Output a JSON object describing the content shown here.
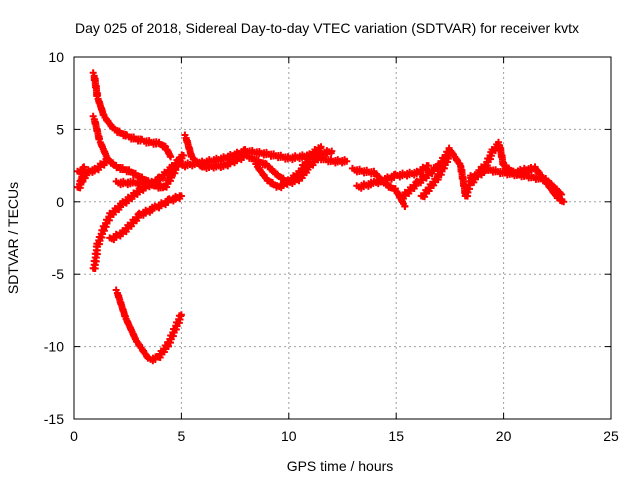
{
  "chart_data": {
    "type": "scatter",
    "title": "Day 025 of 2018, Sidereal Day-to-day VTEC variation (SDTVAR) for receiver kvtx",
    "xlabel": "GPS time / hours",
    "ylabel": "SDTVAR / TECUs",
    "xlim": [
      0,
      25
    ],
    "ylim": [
      -15,
      10
    ],
    "xticks": [
      0,
      5,
      10,
      15,
      20,
      25
    ],
    "yticks": [
      -15,
      -10,
      -5,
      0,
      5,
      10
    ],
    "grid": true,
    "marker": "+",
    "color": "#ff0000",
    "traces": [
      [
        [
          0.93,
          8.8
        ],
        [
          1.1,
          7.2
        ],
        [
          1.4,
          5.9
        ],
        [
          1.86,
          5.0
        ],
        [
          2.5,
          4.5
        ],
        [
          3.2,
          4.2
        ],
        [
          4.0,
          4.0
        ],
        [
          4.3,
          3.7
        ],
        [
          4.5,
          3.1
        ]
      ],
      [
        [
          0.93,
          5.8
        ],
        [
          1.2,
          4.2
        ],
        [
          1.58,
          2.9
        ],
        [
          2.0,
          2.4
        ],
        [
          2.6,
          2.1
        ],
        [
          3.2,
          1.6
        ],
        [
          3.77,
          1.1
        ],
        [
          4.2,
          0.95
        ],
        [
          4.6,
          1.9
        ],
        [
          4.93,
          2.9
        ]
      ],
      [
        [
          2.0,
          1.3
        ],
        [
          2.8,
          1.3
        ],
        [
          3.5,
          1.3
        ],
        [
          4.0,
          1.2
        ]
      ],
      [
        [
          0.2,
          0.9
        ],
        [
          0.4,
          1.6
        ],
        [
          0.7,
          2.1
        ],
        [
          1.0,
          2.2
        ],
        [
          1.58,
          2.9
        ]
      ],
      [
        [
          0.2,
          2.0
        ],
        [
          0.5,
          2.3
        ],
        [
          0.3,
          1.2
        ]
      ],
      [
        [
          0.93,
          -4.7
        ],
        [
          1.1,
          -3.0
        ],
        [
          1.4,
          -1.8
        ],
        [
          1.7,
          -0.9
        ],
        [
          2.3,
          -0.1
        ],
        [
          3.07,
          0.8
        ],
        [
          4.0,
          1.6
        ],
        [
          4.6,
          2.4
        ],
        [
          5.1,
          3.2
        ]
      ],
      [
        [
          1.7,
          -2.6
        ],
        [
          2.3,
          -2.1
        ],
        [
          3.07,
          -0.9
        ],
        [
          3.8,
          -0.4
        ],
        [
          4.47,
          0.1
        ],
        [
          5.0,
          0.4
        ]
      ],
      [
        [
          2.0,
          -6.2
        ],
        [
          2.4,
          -8.0
        ],
        [
          2.9,
          -9.6
        ],
        [
          3.5,
          -10.9
        ],
        [
          3.9,
          -10.8
        ],
        [
          4.4,
          -9.8
        ],
        [
          5.0,
          -7.8
        ]
      ],
      [
        [
          5.2,
          4.5
        ],
        [
          5.5,
          3.0
        ],
        [
          6.0,
          2.4
        ],
        [
          7.0,
          2.5
        ],
        [
          8.0,
          3.2
        ],
        [
          9.0,
          2.5
        ],
        [
          9.5,
          1.8
        ],
        [
          10.0,
          1.3
        ],
        [
          10.5,
          1.6
        ],
        [
          11.0,
          2.5
        ],
        [
          11.5,
          3.3
        ],
        [
          12.0,
          3.5
        ]
      ],
      [
        [
          5.0,
          2.5
        ],
        [
          6.0,
          2.7
        ],
        [
          7.0,
          3.0
        ],
        [
          8.0,
          3.5
        ],
        [
          9.0,
          3.3
        ],
        [
          10.0,
          3.0
        ],
        [
          11.0,
          3.2
        ],
        [
          12.0,
          2.8
        ],
        [
          12.7,
          2.8
        ]
      ],
      [
        [
          8.5,
          2.5
        ],
        [
          9.0,
          1.5
        ],
        [
          9.5,
          1.0
        ],
        [
          10.0,
          1.4
        ],
        [
          10.5,
          2.0
        ],
        [
          11.0,
          3.2
        ],
        [
          11.5,
          3.8
        ]
      ],
      [
        [
          13.0,
          2.2
        ],
        [
          14.0,
          2.0
        ],
        [
          14.5,
          1.2
        ],
        [
          15.0,
          0.8
        ],
        [
          15.4,
          -0.3
        ]
      ],
      [
        [
          13.2,
          1.0
        ],
        [
          14.0,
          1.3
        ],
        [
          15.0,
          1.8
        ],
        [
          16.0,
          2.0
        ],
        [
          16.5,
          2.5
        ]
      ],
      [
        [
          15.2,
          0.2
        ],
        [
          16.0,
          1.3
        ],
        [
          17.0,
          2.5
        ],
        [
          17.5,
          3.6
        ],
        [
          18.0,
          2.5
        ],
        [
          18.25,
          0.3
        ],
        [
          18.5,
          1.7
        ],
        [
          19.0,
          2.0
        ],
        [
          19.5,
          3.5
        ],
        [
          19.8,
          4.0
        ],
        [
          20.0,
          2.5
        ],
        [
          20.5,
          2.0
        ],
        [
          21.0,
          2.2
        ],
        [
          21.5,
          2.3
        ],
        [
          22.0,
          1.3
        ],
        [
          22.5,
          0.3
        ],
        [
          22.8,
          0.0
        ]
      ],
      [
        [
          16.2,
          0.3
        ],
        [
          17.0,
          1.8
        ],
        [
          17.5,
          3.3
        ]
      ],
      [
        [
          18.5,
          1.3
        ],
        [
          19.0,
          2.3
        ],
        [
          20.0,
          2.0
        ],
        [
          21.0,
          1.8
        ],
        [
          22.0,
          1.5
        ],
        [
          22.7,
          0.5
        ]
      ]
    ]
  }
}
